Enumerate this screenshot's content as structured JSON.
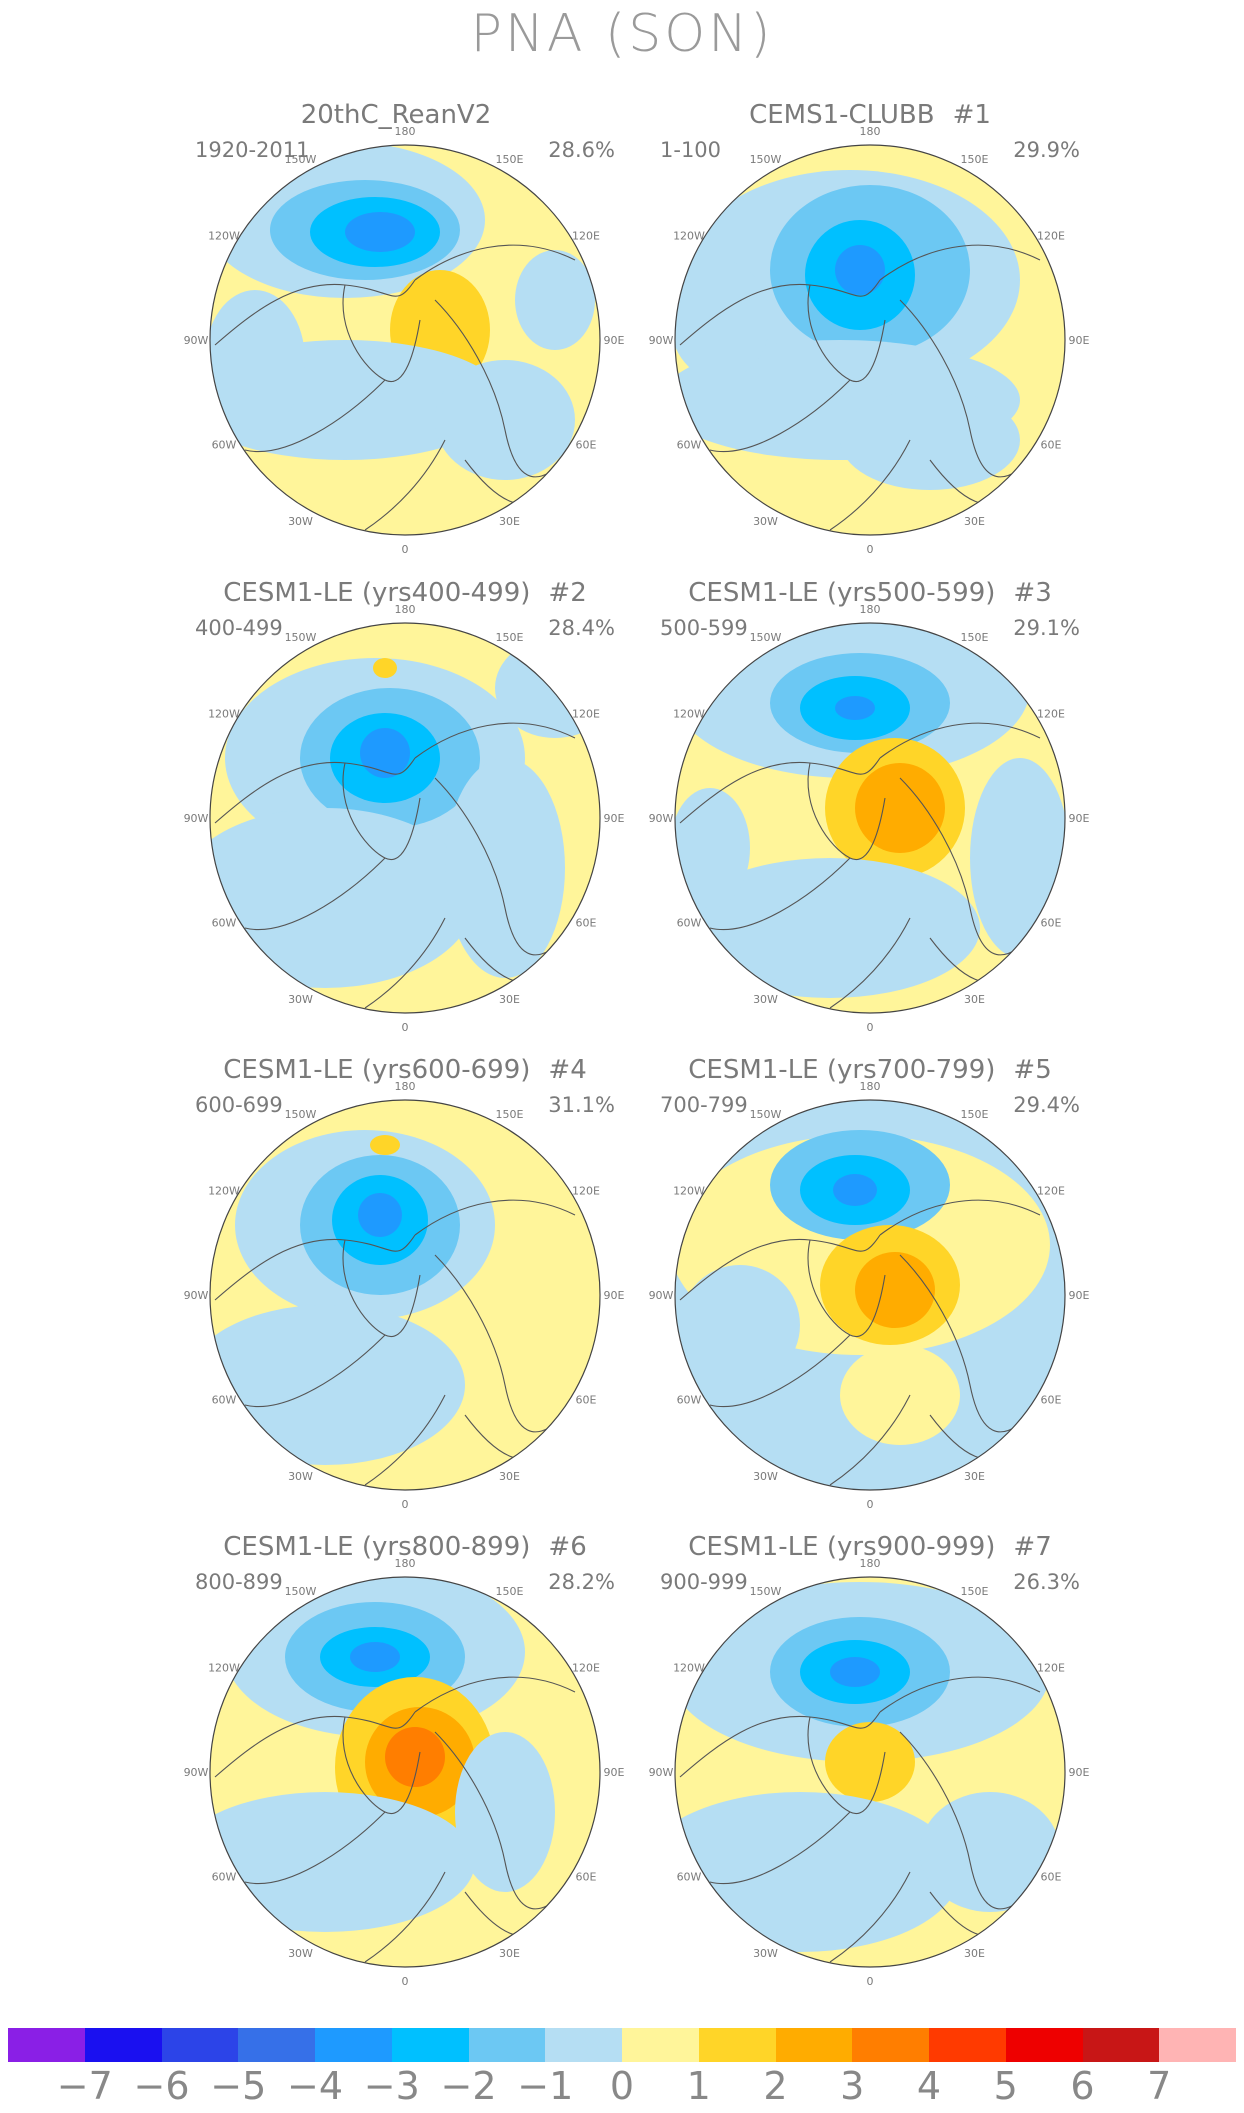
{
  "title": "PNA (SON)",
  "panels": [
    {
      "title": "20thC_ReanV2",
      "num": "",
      "period": "1920-2011",
      "pct": "28.6%"
    },
    {
      "title": "CEMS1-CLUBB",
      "num": "#1",
      "period": "1-100",
      "pct": "29.9%"
    },
    {
      "title": "CESM1-LE (yrs400-499)",
      "num": "#2",
      "period": "400-499",
      "pct": "28.4%"
    },
    {
      "title": "CESM1-LE (yrs500-599)",
      "num": "#3",
      "period": "500-599",
      "pct": "29.1%"
    },
    {
      "title": "CESM1-LE (yrs600-699)",
      "num": "#4",
      "period": "600-699",
      "pct": "31.1%"
    },
    {
      "title": "CESM1-LE (yrs700-799)",
      "num": "#5",
      "period": "700-799",
      "pct": "29.4%"
    },
    {
      "title": "CESM1-LE (yrs800-899)",
      "num": "#6",
      "period": "800-899",
      "pct": "28.2%"
    },
    {
      "title": "CESM1-LE (yrs900-999)",
      "num": "#7",
      "period": "900-999",
      "pct": "26.3%"
    }
  ],
  "lon_labels": [
    "180",
    "150E",
    "120E",
    "90E",
    "60E",
    "30E",
    "0",
    "30W",
    "60W",
    "90W",
    "120W",
    "150W"
  ],
  "colorbar": {
    "colors": [
      "#8a1fe6",
      "#1a10f0",
      "#2c44e8",
      "#3670e8",
      "#1e9aff",
      "#00c0ff",
      "#6cc8f3",
      "#b5def3",
      "#fff59a",
      "#ffd528",
      "#ffac00",
      "#ff7e00",
      "#ff3a00",
      "#ee0000",
      "#c81616",
      "#ffb4b4"
    ],
    "labels": [
      "−7",
      "−6",
      "−5",
      "−4",
      "−3",
      "−2",
      "−1",
      "0",
      "1",
      "2",
      "3",
      "4",
      "5",
      "6",
      "7"
    ]
  },
  "colors": {
    "positive": "#fff59a",
    "negative_weak": "#b5def3",
    "coast": "#555555"
  }
}
